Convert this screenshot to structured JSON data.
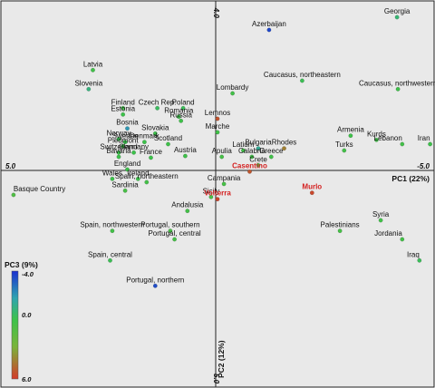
{
  "chart_data": {
    "type": "scatter",
    "xlabel": "PC1 (22%)",
    "ylabel": "PC2 (12%)",
    "xlim": [
      5.0,
      -5.0
    ],
    "ylim": [
      -4.0,
      5.0
    ],
    "x_tick_labels": [
      "5.0",
      "-5.0"
    ],
    "y_tick_labels": [
      "-4.0",
      "5.0"
    ],
    "color_scale": {
      "title": "PC3 (9%)",
      "min": -4.0,
      "mid": 0.0,
      "max": 6.0,
      "tick_labels": [
        "-4.0",
        "0.0",
        "6.0"
      ],
      "colors": [
        "#1a2fd0",
        "#2fa4b0",
        "#3cc24a",
        "#7ab43a",
        "#d43a2a"
      ]
    },
    "points": [
      {
        "label": "Georgia",
        "x": -4.18,
        "y": -3.7,
        "pc3": -0.8,
        "red": false
      },
      {
        "label": "Azerbaijan",
        "x": -1.2,
        "y": -3.4,
        "pc3": -3.6,
        "red": false
      },
      {
        "label": "Latvia",
        "x": 2.9,
        "y": -2.45,
        "pc3": 0.2,
        "red": false
      },
      {
        "label": "Slovenia",
        "x": 3.0,
        "y": -2.0,
        "pc3": -1.0,
        "red": false
      },
      {
        "label": "Caucasus, northeastern",
        "x": -1.97,
        "y": -2.2,
        "pc3": -0.2,
        "red": false
      },
      {
        "label": "Caucasus, northwestern",
        "x": -4.2,
        "y": -2.0,
        "pc3": 0.1,
        "red": false
      },
      {
        "label": "Lombardy",
        "x": -0.35,
        "y": -1.9,
        "pc3": 0.3,
        "red": false
      },
      {
        "label": "Finland",
        "x": 2.2,
        "y": -1.55,
        "pc3": 0.2,
        "red": false
      },
      {
        "label": "Czech Rep.",
        "x": 1.4,
        "y": -1.55,
        "pc3": -0.4,
        "red": false
      },
      {
        "label": "Poland",
        "x": 0.8,
        "y": -1.55,
        "pc3": -0.3,
        "red": false
      },
      {
        "label": "Estonia",
        "x": 2.2,
        "y": -1.4,
        "pc3": 0.0,
        "red": false
      },
      {
        "label": "Romania",
        "x": 0.9,
        "y": -1.35,
        "pc3": 0.0,
        "red": false
      },
      {
        "label": "Russia",
        "x": 0.85,
        "y": -1.25,
        "pc3": 0.1,
        "red": false
      },
      {
        "label": "Lemnos",
        "x": 0.0,
        "y": -1.3,
        "pc3": 5.3,
        "red": false
      },
      {
        "label": "Bosnia",
        "x": 2.1,
        "y": -1.07,
        "pc3": -2.2,
        "red": false
      },
      {
        "label": "Slovakia",
        "x": 1.45,
        "y": -0.95,
        "pc3": 0.0,
        "red": false
      },
      {
        "label": "Marche",
        "x": 0.0,
        "y": -0.98,
        "pc3": 0.2,
        "red": false
      },
      {
        "label": "Norway",
        "x": 2.3,
        "y": -0.82,
        "pc3": -0.2,
        "red": false
      },
      {
        "label": "Armenia",
        "x": -3.1,
        "y": -0.9,
        "pc3": 0.1,
        "red": false
      },
      {
        "label": "Sweden",
        "x": 2.15,
        "y": -0.75,
        "pc3": -0.1,
        "red": false
      },
      {
        "label": "Denmark",
        "x": 1.7,
        "y": -0.75,
        "pc3": 0.0,
        "red": false
      },
      {
        "label": "Scotland",
        "x": 1.15,
        "y": -0.7,
        "pc3": 0.1,
        "red": false
      },
      {
        "label": "Kurds",
        "x": -3.7,
        "y": -0.8,
        "pc3": 0.2,
        "red": false
      },
      {
        "label": "Lebanon",
        "x": -4.3,
        "y": -0.7,
        "pc3": 0.3,
        "red": false
      },
      {
        "label": "Iran",
        "x": -4.95,
        "y": -0.7,
        "pc3": 0.0,
        "red": false
      },
      {
        "label": "Piedmont",
        "x": 2.2,
        "y": -0.65,
        "pc3": 0.0,
        "red": false
      },
      {
        "label": "Latium",
        "x": -0.6,
        "y": -0.55,
        "pc3": 0.2,
        "red": false
      },
      {
        "label": "Bulgaria",
        "x": -0.95,
        "y": -0.6,
        "pc3": -1.5,
        "red": false
      },
      {
        "label": "Rhodes",
        "x": -1.55,
        "y": -0.6,
        "pc3": 4.0,
        "red": false
      },
      {
        "label": "Turks",
        "x": -2.95,
        "y": -0.55,
        "pc3": 0.3,
        "red": false
      },
      {
        "label": "Switzerland",
        "x": 2.3,
        "y": -0.5,
        "pc3": 0.0,
        "red": false
      },
      {
        "label": "Germany",
        "x": 1.95,
        "y": -0.5,
        "pc3": 0.0,
        "red": false
      },
      {
        "label": "Austria",
        "x": 0.75,
        "y": -0.42,
        "pc3": 0.1,
        "red": false
      },
      {
        "label": "Apulia",
        "x": -0.1,
        "y": -0.4,
        "pc3": 0.4,
        "red": false
      },
      {
        "label": "Calabria",
        "x": -0.8,
        "y": -0.4,
        "pc3": 0.3,
        "red": false
      },
      {
        "label": "Greece",
        "x": -1.25,
        "y": -0.4,
        "pc3": 0.2,
        "red": false
      },
      {
        "label": "Bavaria",
        "x": 2.3,
        "y": -0.4,
        "pc3": 0.0,
        "red": false
      },
      {
        "label": "France",
        "x": 1.55,
        "y": -0.38,
        "pc3": 0.0,
        "red": false
      },
      {
        "label": "England",
        "x": 2.1,
        "y": -0.1,
        "pc3": 0.0,
        "red": false
      },
      {
        "label": "Crete",
        "x": -0.95,
        "y": -0.2,
        "pc3": 0.2,
        "red": false
      },
      {
        "label": "Casentino",
        "x": -0.75,
        "y": -0.05,
        "pc3": 5.2,
        "red": true
      },
      {
        "label": "Wales",
        "x": 2.45,
        "y": 0.12,
        "pc3": 0.0,
        "red": false
      },
      {
        "label": "Ireland",
        "x": 1.85,
        "y": 0.12,
        "pc3": 0.0,
        "red": false
      },
      {
        "label": "Spain, northeastern",
        "x": 1.65,
        "y": 0.2,
        "pc3": 0.3,
        "red": false
      },
      {
        "label": "Campania",
        "x": -0.15,
        "y": 0.24,
        "pc3": 0.4,
        "red": false
      },
      {
        "label": "Sardinia",
        "x": 2.15,
        "y": 0.4,
        "pc3": 0.5,
        "red": false
      },
      {
        "label": "Basque Country",
        "x": 4.75,
        "y": 0.5,
        "pc3": 0.8,
        "red": false
      },
      {
        "label": "Murlo",
        "x": -2.2,
        "y": 0.45,
        "pc3": 5.6,
        "red": true
      },
      {
        "label": "Sicily",
        "x": 0.15,
        "y": 0.55,
        "pc3": 0.5,
        "red": false
      },
      {
        "label": "Volterra",
        "x": 0.0,
        "y": 0.6,
        "pc3": 5.7,
        "red": true
      },
      {
        "label": "Andalusia",
        "x": 0.7,
        "y": 0.88,
        "pc3": 0.3,
        "red": false
      },
      {
        "label": "Syria",
        "x": -3.8,
        "y": 1.1,
        "pc3": 0.2,
        "red": false
      },
      {
        "label": "Spain, northwestern",
        "x": 2.45,
        "y": 1.35,
        "pc3": 0.3,
        "red": false
      },
      {
        "label": "Portugal, southern",
        "x": 1.1,
        "y": 1.35,
        "pc3": 0.5,
        "red": false
      },
      {
        "label": "Palestinians",
        "x": -2.85,
        "y": 1.35,
        "pc3": 0.4,
        "red": false
      },
      {
        "label": "Portugal, central",
        "x": 1.0,
        "y": 1.55,
        "pc3": 0.4,
        "red": false
      },
      {
        "label": "Jordania",
        "x": -4.3,
        "y": 1.55,
        "pc3": 0.3,
        "red": false
      },
      {
        "label": "Spain, central",
        "x": 2.5,
        "y": 2.05,
        "pc3": -0.2,
        "red": false
      },
      {
        "label": "Iraq",
        "x": -4.7,
        "y": 2.05,
        "pc3": -0.3,
        "red": false
      },
      {
        "label": "Portugal, northern",
        "x": 1.45,
        "y": 2.65,
        "pc3": -3.5,
        "red": false
      }
    ]
  }
}
